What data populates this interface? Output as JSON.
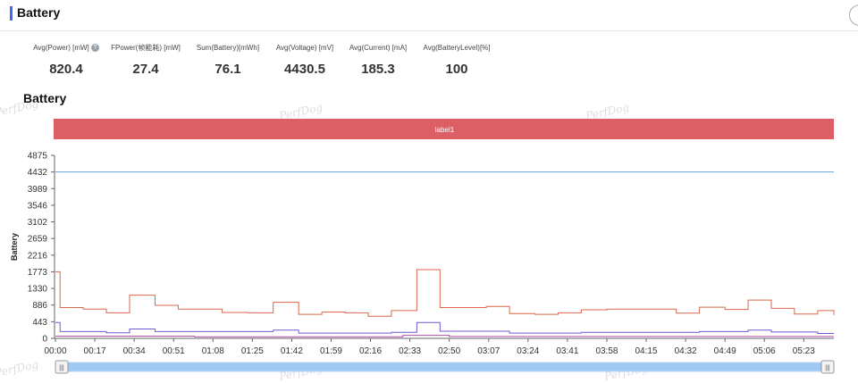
{
  "header": {
    "title": "Battery"
  },
  "stats": [
    {
      "label": "Avg(Power) [mW]",
      "value": "820.4",
      "help": true,
      "help_glyph": "?"
    },
    {
      "label": "FPower(帧能耗) [mW]",
      "value": "27.4"
    },
    {
      "label": "Sum(Battery)[mWh]",
      "value": "76.1"
    },
    {
      "label": "Avg(Voltage) [mV]",
      "value": "4430.5"
    },
    {
      "label": "Avg(Current) [mA]",
      "value": "185.3"
    },
    {
      "label": "Avg(BatteryLevel)[%]",
      "value": "100"
    }
  ],
  "section_title": "Battery",
  "watermark": "PerfDog",
  "chart_data": {
    "type": "line",
    "ylabel": "Battery",
    "ylim": [
      0,
      4875
    ],
    "yticks": [
      "0",
      "443",
      "886",
      "1330",
      "1773",
      "2216",
      "2659",
      "3102",
      "3546",
      "3989",
      "4432",
      "4875"
    ],
    "xticks": [
      "00:00",
      "00:17",
      "00:34",
      "00:51",
      "01:08",
      "01:25",
      "01:42",
      "01:59",
      "02:16",
      "02:33",
      "02:50",
      "03:07",
      "03:24",
      "03:41",
      "03:58",
      "04:15",
      "04:32",
      "04:49",
      "05:06",
      "05:23"
    ],
    "x_range_sec": [
      0,
      336
    ],
    "label_band": {
      "text": "label1",
      "color": "#dd5f66"
    },
    "series": [
      {
        "color": "#6a9fe0",
        "points": [
          [
            0,
            4432
          ],
          [
            336,
            4432
          ]
        ]
      },
      {
        "color": "#d9674c",
        "points": [
          [
            0,
            1773
          ],
          [
            2,
            1773
          ],
          [
            2,
            820
          ],
          [
            12,
            820
          ],
          [
            12,
            780
          ],
          [
            22,
            780
          ],
          [
            22,
            680
          ],
          [
            32,
            680
          ],
          [
            32,
            1150
          ],
          [
            43,
            1150
          ],
          [
            43,
            880
          ],
          [
            53,
            880
          ],
          [
            53,
            780
          ],
          [
            72,
            780
          ],
          [
            72,
            690
          ],
          [
            83,
            690
          ],
          [
            83,
            680
          ],
          [
            94,
            680
          ],
          [
            94,
            960
          ],
          [
            105,
            960
          ],
          [
            105,
            640
          ],
          [
            115,
            640
          ],
          [
            115,
            700
          ],
          [
            125,
            700
          ],
          [
            125,
            680
          ],
          [
            135,
            680
          ],
          [
            135,
            590
          ],
          [
            145,
            590
          ],
          [
            145,
            740
          ],
          [
            156,
            740
          ],
          [
            156,
            1830
          ],
          [
            166,
            1830
          ],
          [
            166,
            820
          ],
          [
            186,
            820
          ],
          [
            186,
            850
          ],
          [
            196,
            850
          ],
          [
            196,
            660
          ],
          [
            207,
            660
          ],
          [
            207,
            640
          ],
          [
            217,
            640
          ],
          [
            217,
            680
          ],
          [
            227,
            680
          ],
          [
            227,
            760
          ],
          [
            238,
            760
          ],
          [
            238,
            780
          ],
          [
            268,
            780
          ],
          [
            268,
            670
          ],
          [
            278,
            670
          ],
          [
            278,
            830
          ],
          [
            289,
            830
          ],
          [
            289,
            770
          ],
          [
            299,
            770
          ],
          [
            299,
            1020
          ],
          [
            309,
            1020
          ],
          [
            309,
            800
          ],
          [
            319,
            800
          ],
          [
            319,
            650
          ],
          [
            329,
            650
          ],
          [
            329,
            740
          ],
          [
            336,
            740
          ],
          [
            336,
            620
          ]
        ]
      },
      {
        "color": "#7457d6",
        "points": [
          [
            0,
            420
          ],
          [
            2,
            420
          ],
          [
            2,
            180
          ],
          [
            22,
            180
          ],
          [
            22,
            150
          ],
          [
            32,
            150
          ],
          [
            32,
            250
          ],
          [
            43,
            250
          ],
          [
            43,
            180
          ],
          [
            94,
            180
          ],
          [
            94,
            220
          ],
          [
            105,
            220
          ],
          [
            105,
            140
          ],
          [
            145,
            140
          ],
          [
            145,
            160
          ],
          [
            156,
            160
          ],
          [
            156,
            420
          ],
          [
            166,
            420
          ],
          [
            166,
            190
          ],
          [
            196,
            190
          ],
          [
            196,
            140
          ],
          [
            227,
            140
          ],
          [
            227,
            160
          ],
          [
            278,
            160
          ],
          [
            278,
            180
          ],
          [
            299,
            180
          ],
          [
            299,
            220
          ],
          [
            309,
            220
          ],
          [
            309,
            170
          ],
          [
            329,
            170
          ],
          [
            329,
            130
          ],
          [
            336,
            130
          ]
        ]
      },
      {
        "color": "#b64fa8",
        "points": [
          [
            0,
            60
          ],
          [
            60,
            60
          ],
          [
            60,
            40
          ],
          [
            150,
            40
          ],
          [
            150,
            80
          ],
          [
            170,
            80
          ],
          [
            170,
            50
          ],
          [
            336,
            50
          ]
        ]
      }
    ]
  },
  "slider": {
    "handle_glyph": "|||"
  }
}
